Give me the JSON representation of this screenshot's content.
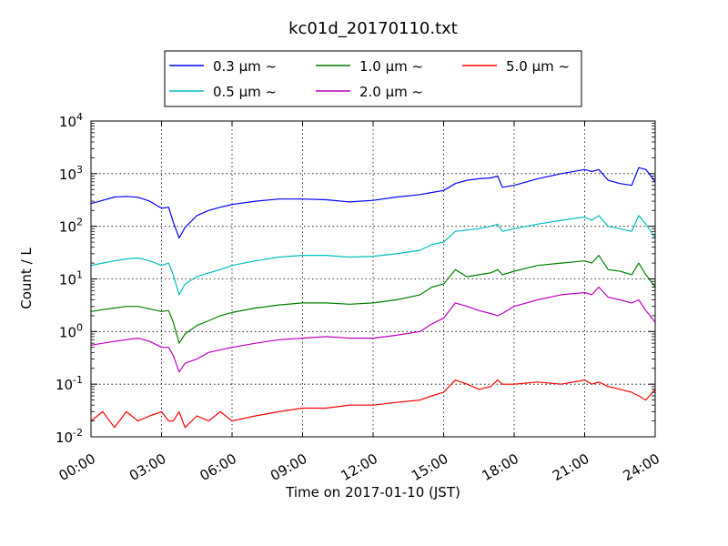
{
  "chart_data": {
    "type": "line",
    "title": "kc01d_20170110.txt",
    "xlabel": "Time on 2017-01-10 (JST)",
    "ylabel": "Count / L",
    "yscale": "log",
    "ylim": [
      0.01,
      10000
    ],
    "xlim": [
      "00:00",
      "24:00"
    ],
    "grid": true,
    "legend_placement": "top-center, above plot",
    "x_ticks": [
      "00:00",
      "03:00",
      "06:00",
      "09:00",
      "12:00",
      "15:00",
      "18:00",
      "21:00",
      "24:00"
    ],
    "y_ticks": [
      {
        "base": "10",
        "exp": "-2"
      },
      {
        "base": "10",
        "exp": "-1"
      },
      {
        "base": "10",
        "exp": "0"
      },
      {
        "base": "10",
        "exp": "1"
      },
      {
        "base": "10",
        "exp": "2"
      },
      {
        "base": "10",
        "exp": "3"
      },
      {
        "base": "10",
        "exp": "4"
      }
    ],
    "x_hours": [
      0,
      0.5,
      1,
      1.5,
      2,
      2.5,
      3,
      3.3,
      3.5,
      3.75,
      4,
      4.5,
      5,
      5.5,
      6,
      7,
      8,
      9,
      10,
      11,
      12,
      13,
      14,
      14.5,
      15,
      15.5,
      16,
      16.5,
      17,
      17.3,
      17.5,
      18,
      19,
      20,
      21,
      21.3,
      21.6,
      22,
      22.5,
      23,
      23.3,
      23.6,
      24
    ],
    "series": [
      {
        "name": "0.3 μm ~",
        "color": "#0000ff",
        "values": [
          270,
          310,
          360,
          370,
          355,
          300,
          220,
          230,
          120,
          60,
          95,
          160,
          200,
          230,
          260,
          300,
          330,
          330,
          320,
          290,
          310,
          360,
          400,
          440,
          480,
          650,
          750,
          800,
          830,
          900,
          550,
          600,
          800,
          1000,
          1200,
          1100,
          1200,
          750,
          650,
          600,
          1300,
          1200,
          700
        ]
      },
      {
        "name": "0.5 μm ~",
        "color": "#00bfbf",
        "values": [
          18,
          20,
          22,
          24,
          25,
          22,
          18,
          20,
          12,
          5,
          8,
          11,
          13,
          15,
          18,
          22,
          26,
          28,
          28,
          26,
          27,
          30,
          35,
          45,
          50,
          80,
          85,
          90,
          100,
          110,
          80,
          90,
          110,
          130,
          150,
          130,
          160,
          100,
          90,
          80,
          160,
          110,
          60
        ]
      },
      {
        "name": "1.0 μm ~",
        "color": "#008000",
        "values": [
          2.4,
          2.6,
          2.8,
          3.0,
          3.0,
          2.7,
          2.4,
          2.5,
          1.5,
          0.6,
          0.9,
          1.3,
          1.6,
          2.0,
          2.3,
          2.8,
          3.2,
          3.5,
          3.5,
          3.3,
          3.5,
          4.0,
          5.0,
          7.0,
          8.0,
          15,
          11,
          12,
          13,
          15,
          12,
          14,
          18,
          20,
          22,
          20,
          28,
          15,
          14,
          12,
          20,
          12,
          7
        ]
      },
      {
        "name": "2.0 μm ~",
        "color": "#bf00bf",
        "values": [
          0.55,
          0.6,
          0.65,
          0.7,
          0.75,
          0.65,
          0.5,
          0.5,
          0.35,
          0.17,
          0.25,
          0.3,
          0.4,
          0.45,
          0.5,
          0.6,
          0.7,
          0.75,
          0.8,
          0.75,
          0.75,
          0.85,
          1.0,
          1.4,
          1.8,
          3.5,
          3.0,
          2.5,
          2.2,
          2.0,
          2.2,
          3.0,
          4.0,
          5.0,
          5.5,
          5.0,
          7.0,
          4.5,
          4.0,
          3.5,
          4.0,
          2.5,
          1.5
        ]
      },
      {
        "name": "5.0 μm ~",
        "color": "#ff0000",
        "values": [
          0.02,
          0.03,
          0.015,
          0.03,
          0.02,
          0.025,
          0.03,
          0.02,
          0.02,
          0.03,
          0.015,
          0.025,
          0.02,
          0.03,
          0.02,
          0.025,
          0.03,
          0.035,
          0.035,
          0.04,
          0.04,
          0.045,
          0.05,
          0.06,
          0.07,
          0.12,
          0.1,
          0.08,
          0.09,
          0.12,
          0.1,
          0.1,
          0.11,
          0.1,
          0.12,
          0.1,
          0.11,
          0.09,
          0.08,
          0.07,
          0.06,
          0.05,
          0.08
        ]
      }
    ]
  }
}
